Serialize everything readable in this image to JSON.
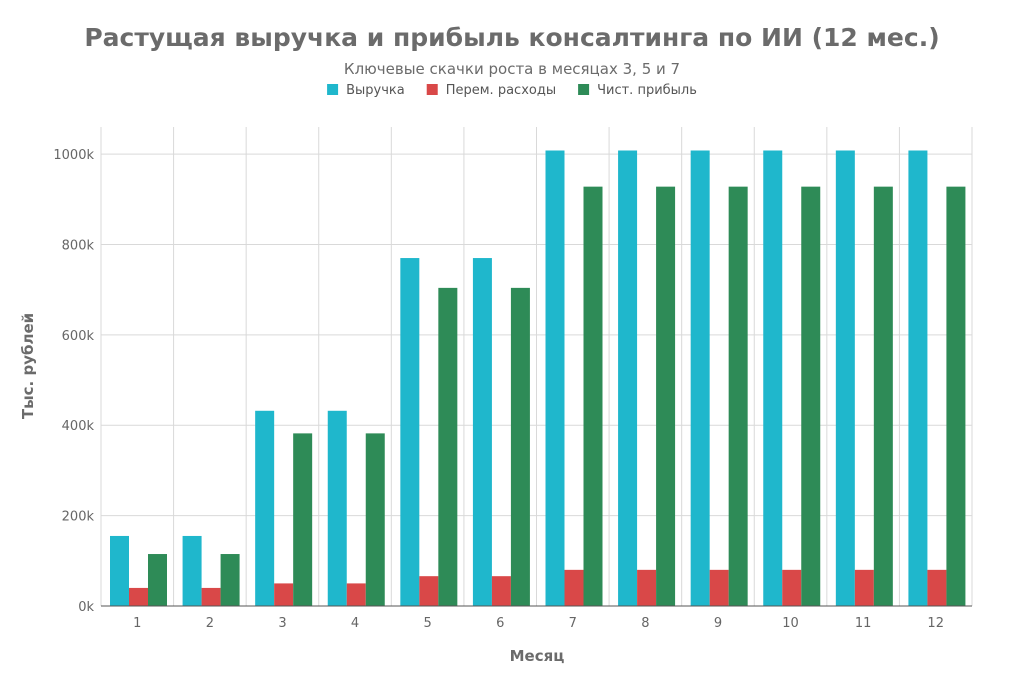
{
  "chart_data": {
    "type": "bar",
    "title": "Растущая выручка и прибыль консалтинга по ИИ (12 мес.)",
    "subtitle": "Ключевые скачки роста в месяцах 3, 5 и 7",
    "xlabel": "Месяц",
    "ylabel": "Тыс. рублей",
    "categories": [
      "1",
      "2",
      "3",
      "4",
      "5",
      "6",
      "7",
      "8",
      "9",
      "10",
      "11",
      "12"
    ],
    "ylim": [
      0,
      1060
    ],
    "yticks": [
      0,
      200,
      400,
      600,
      800,
      1000
    ],
    "ytick_labels": [
      "0k",
      "200k",
      "400k",
      "600k",
      "800k",
      "1000k"
    ],
    "grid": true,
    "legend_position": "top-center",
    "series": [
      {
        "name": "Выручка",
        "color": "#1fb7cc",
        "values": [
          155,
          155,
          432,
          432,
          770,
          770,
          1008,
          1008,
          1008,
          1008,
          1008,
          1008
        ]
      },
      {
        "name": "Перем. расходы",
        "color": "#d94848",
        "values": [
          40,
          40,
          50,
          50,
          66,
          66,
          80,
          80,
          80,
          80,
          80,
          80
        ]
      },
      {
        "name": "Чист. прибыль",
        "color": "#2e8b57",
        "values": [
          115,
          115,
          382,
          382,
          704,
          704,
          928,
          928,
          928,
          928,
          928,
          928
        ]
      }
    ]
  }
}
